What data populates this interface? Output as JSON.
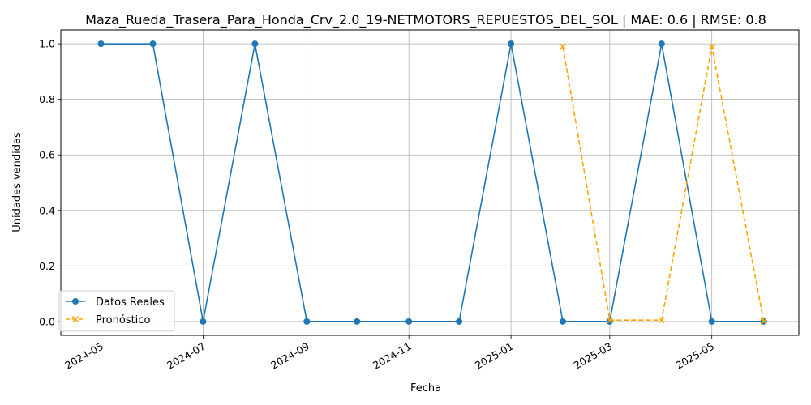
{
  "chart_data": {
    "type": "line",
    "title": "Maza_Rueda_Trasera_Para_Honda_Crv_2.0_19-NETMOTORS_REPUESTOS_DEL_SOL | MAE: 0.6 | RMSE: 0.8",
    "xlabel": "Fecha",
    "ylabel": "Unidades vendidas",
    "x_ticks": [
      "2024-05",
      "2024-07",
      "2024-09",
      "2024-11",
      "2025-01",
      "2025-03",
      "2025-05"
    ],
    "y_ticks": [
      "0.0",
      "0.2",
      "0.4",
      "0.6",
      "0.8",
      "1.0"
    ],
    "xlim": [
      "2024-04-07",
      "2025-06-22"
    ],
    "ylim": [
      -0.05,
      1.05
    ],
    "grid": true,
    "legend_position": "lower-left",
    "series": [
      {
        "name": "Datos Reales",
        "color": "#1f77b4",
        "marker": "circle",
        "linestyle": "solid",
        "x": [
          "2024-05-01",
          "2024-06-01",
          "2024-07-01",
          "2024-08-01",
          "2024-09-01",
          "2024-10-01",
          "2024-11-01",
          "2024-12-01",
          "2025-01-01",
          "2025-02-01",
          "2025-03-01",
          "2025-04-01",
          "2025-05-01",
          "2025-06-01"
        ],
        "values": [
          1,
          1,
          0,
          1,
          0,
          0,
          0,
          0,
          1,
          0,
          0,
          1,
          0,
          0
        ]
      },
      {
        "name": "Pronóstico",
        "color": "#ffa500",
        "marker": "x",
        "linestyle": "dashed",
        "x": [
          "2025-02-01",
          "2025-03-01",
          "2025-04-01",
          "2025-05-01",
          "2025-06-01"
        ],
        "values": [
          0.99,
          0.005,
          0.005,
          0.99,
          0.0
        ]
      }
    ]
  }
}
